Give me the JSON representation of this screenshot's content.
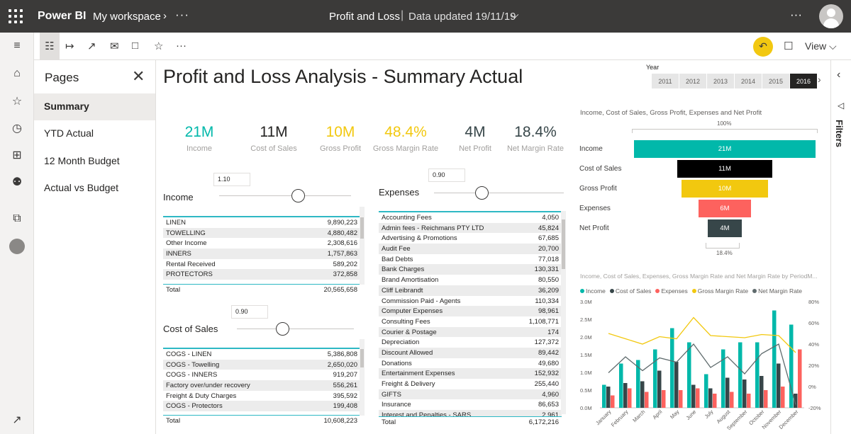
{
  "topbar": {
    "brand": "Power BI",
    "workspace": "My workspace",
    "report_name": "Profit and Loss",
    "separator": "|",
    "updated": "Data updated 19/11/19"
  },
  "toolbar": {
    "view_label": "View"
  },
  "pages": {
    "title": "Pages",
    "items": [
      "Summary",
      "YTD Actual",
      "12 Month Budget",
      "Actual vs Budget"
    ]
  },
  "report": {
    "title": "Profit and Loss Analysis - Summary Actual",
    "year_label": "Year",
    "years": [
      "2011",
      "2012",
      "2013",
      "2014",
      "2015",
      "2016"
    ],
    "selected_year": "2016"
  },
  "kpis": [
    {
      "value": "21M",
      "label": "Income",
      "color": "#01b8aa"
    },
    {
      "value": "11M",
      "label": "Cost of Sales",
      "color": "#252423"
    },
    {
      "value": "10M",
      "label": "Gross Profit",
      "color": "#f2c80f"
    },
    {
      "value": "48.4%",
      "label": "Gross Margin Rate",
      "color": "#f2c80f"
    },
    {
      "value": "4M",
      "label": "Net Profit",
      "color": "#374649"
    },
    {
      "value": "18.4%",
      "label": "Net Margin Rate",
      "color": "#374649"
    }
  ],
  "income": {
    "label": "Income",
    "slider_value": "1.10",
    "rows": [
      [
        "LINEN",
        "9,890,223"
      ],
      [
        "TOWELLING",
        "4,880,482"
      ],
      [
        "Other Income",
        "2,308,616"
      ],
      [
        "INNERS",
        "1,757,863"
      ],
      [
        "Rental Received",
        "589,202"
      ],
      [
        "PROTECTORS",
        "372,858"
      ]
    ],
    "total_label": "Total",
    "total": "20,565,658"
  },
  "cost_of_sales": {
    "label": "Cost of Sales",
    "slider_value": "0.90",
    "rows": [
      [
        "COGS - LINEN",
        "5,386,808"
      ],
      [
        "COGS - Towelling",
        "2,650,020"
      ],
      [
        "COGS - INNERS",
        "919,207"
      ],
      [
        "Factory over/under recovery",
        "556,261"
      ],
      [
        "Freight & Duty Charges",
        "395,592"
      ],
      [
        "COGS - Protectors",
        "199,408"
      ]
    ],
    "total_label": "Total",
    "total": "10,608,223"
  },
  "expenses": {
    "label": "Expenses",
    "slider_value": "0.90",
    "rows": [
      [
        "Accounting Fees",
        "4,050"
      ],
      [
        "Admin fees - Reichmans PTY LTD",
        "45,824"
      ],
      [
        "Advertising & Promotions",
        "67,685"
      ],
      [
        "Audit Fee",
        "20,700"
      ],
      [
        "Bad Debts",
        "77,018"
      ],
      [
        "Bank Charges",
        "130,331"
      ],
      [
        "Brand Amortisation",
        "80,550"
      ],
      [
        "Cliff Leibrandt",
        "36,209"
      ],
      [
        "Commission Paid - Agents",
        "110,334"
      ],
      [
        "Computer Expenses",
        "98,961"
      ],
      [
        "Consulting Fees",
        "1,108,771"
      ],
      [
        "Courier & Postage",
        "174"
      ],
      [
        "Depreciation",
        "127,372"
      ],
      [
        "Discount Allowed",
        "89,442"
      ],
      [
        "Donations",
        "49,680"
      ],
      [
        "Entertainment Expenses",
        "152,932"
      ],
      [
        "Freight & Delivery",
        "255,440"
      ],
      [
        "GIFTS",
        "4,960"
      ],
      [
        "Insurance",
        "86,653"
      ],
      [
        "Interest and Penalties - SARS",
        "2,961"
      ]
    ],
    "total_label": "Total",
    "total": "6,172,216"
  },
  "funnel": {
    "title": "Income, Cost of Sales, Gross Profit, Expenses and Net Profit",
    "top_pct": "100%",
    "bottom_pct": "18.4%",
    "stages": [
      {
        "label": "Income",
        "value": "21M",
        "amount": 21,
        "color": "#01b8aa"
      },
      {
        "label": "Cost of Sales",
        "value": "11M",
        "amount": 11,
        "color": "#000000"
      },
      {
        "label": "Gross Profit",
        "value": "10M",
        "amount": 10,
        "color": "#f2c80f"
      },
      {
        "label": "Expenses",
        "value": "6M",
        "amount": 6,
        "color": "#fd625e"
      },
      {
        "label": "Net Profit",
        "value": "4M",
        "amount": 4,
        "color": "#374649"
      }
    ]
  },
  "chart_data": {
    "type": "bar",
    "title": "Income, Cost of Sales, Expenses, Gross Margin Rate and Net Margin Rate by PeriodM...",
    "categories": [
      "January",
      "February",
      "March",
      "April",
      "May",
      "June",
      "July",
      "August",
      "September",
      "October",
      "November",
      "December"
    ],
    "y_ticks": [
      "3.0M",
      "2.5M",
      "2.0M",
      "1.5M",
      "1.0M",
      "0.5M",
      "0.0M"
    ],
    "y2_ticks": [
      "80%",
      "60%",
      "40%",
      "20%",
      "0%",
      "-20%"
    ],
    "ylim": [
      0,
      3.0
    ],
    "y2lim": [
      -20,
      80
    ],
    "series": [
      {
        "name": "Income",
        "kind": "bar",
        "color": "#01b8aa",
        "values": [
          0.65,
          1.25,
          1.35,
          1.65,
          2.25,
          1.85,
          0.95,
          1.65,
          1.85,
          1.85,
          2.75,
          2.35
        ]
      },
      {
        "name": "Cost of Sales",
        "kind": "bar",
        "color": "#374649",
        "values": [
          0.6,
          0.7,
          0.75,
          1.05,
          1.3,
          0.65,
          0.55,
          0.85,
          0.8,
          0.9,
          1.25,
          0.4
        ]
      },
      {
        "name": "Expenses",
        "kind": "bar",
        "color": "#fd625e",
        "values": [
          0.35,
          0.55,
          0.45,
          0.5,
          0.5,
          0.55,
          0.4,
          0.45,
          0.4,
          0.5,
          0.6,
          1.65
        ]
      },
      {
        "name": "Gross Margin Rate",
        "kind": "line",
        "color": "#f2c80f",
        "values": [
          50,
          45,
          40,
          47,
          45,
          65,
          48,
          47,
          46,
          49,
          48,
          32
        ]
      },
      {
        "name": "Net Margin Rate",
        "kind": "line",
        "color": "#5f6b6d",
        "values": [
          13,
          28,
          15,
          27,
          23,
          40,
          18,
          28,
          12,
          31,
          40,
          -17
        ]
      }
    ]
  }
}
